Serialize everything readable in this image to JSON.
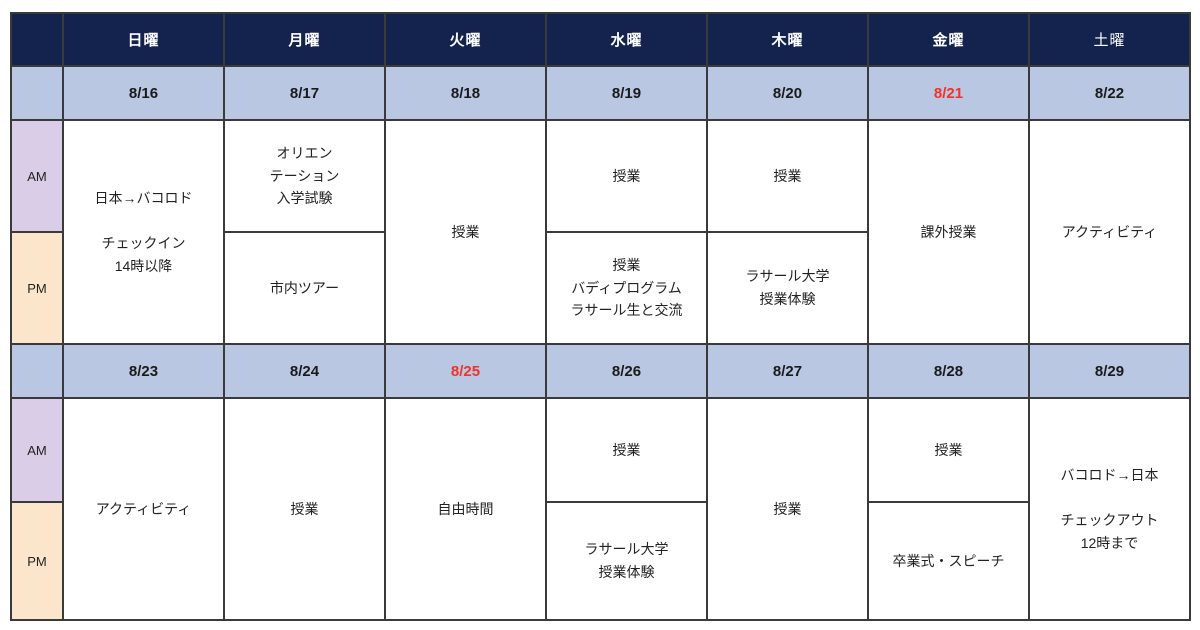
{
  "colors": {
    "header_bg": "#14234e",
    "header_text": "#ffffff",
    "date_row_bg": "#b9c7e3",
    "am_label_bg": "#d9cde7",
    "pm_label_bg": "#fce6cb",
    "highlight_date_text": "#f03228",
    "grid_line": "#3a3a3a"
  },
  "row_labels": {
    "am": "AM",
    "pm": "PM"
  },
  "day_headers": [
    "日曜",
    "月曜",
    "火曜",
    "水曜",
    "木曜",
    "金曜",
    "土曜"
  ],
  "week1": {
    "dates": [
      "8/16",
      "8/17",
      "8/18",
      "8/19",
      "8/20",
      "8/21",
      "8/22"
    ],
    "highlighted_date": "8/21",
    "cells": {
      "sun_allday": "日本→バコロド\n\nチェックイン\n14時以降",
      "mon_am": "オリエン\nテーション\n入学試験",
      "mon_pm": "市内ツアー",
      "tue_allday": "授業",
      "wed_am": "授業",
      "wed_pm": "授業\nバディプログラム\nラサール生と交流",
      "thu_am": "授業",
      "thu_pm": "ラサール大学\n授業体験",
      "fri_allday": "課外授業",
      "sat_allday": "アクティビティ"
    }
  },
  "week2": {
    "dates": [
      "8/23",
      "8/24",
      "8/25",
      "8/26",
      "8/27",
      "8/28",
      "8/29"
    ],
    "highlighted_date": "8/25",
    "cells": {
      "sun_allday": "アクティビティ",
      "mon_allday": "授業",
      "tue_allday": "自由時間",
      "wed_am": "授業",
      "wed_pm": "ラサール大学\n授業体験",
      "thu_allday": "授業",
      "fri_am": "授業",
      "fri_pm": "卒業式・スピーチ",
      "sat_allday": "バコロド→日本\n\nチェックアウト\n12時まで"
    }
  }
}
